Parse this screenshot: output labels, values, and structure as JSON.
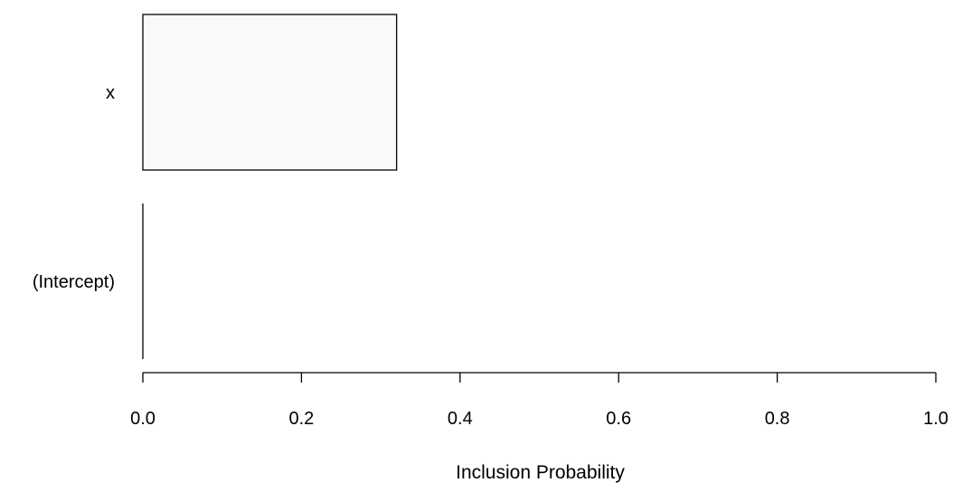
{
  "chart_data": {
    "type": "bar",
    "orientation": "horizontal",
    "categories": [
      "(Intercept)",
      "x"
    ],
    "values": [
      0,
      0.32
    ],
    "xlabel": "Inclusion Probability",
    "xlim": [
      0,
      1
    ],
    "x_ticks": [
      0,
      0.2,
      0.4,
      0.6,
      0.8,
      1
    ],
    "x_tick_labels": [
      "0.0",
      "0.2",
      "0.4",
      "0.6",
      "0.8",
      "1.0"
    ],
    "bar_fill": "#f9f9f9",
    "bar_stroke": "#000000",
    "grid": false
  }
}
